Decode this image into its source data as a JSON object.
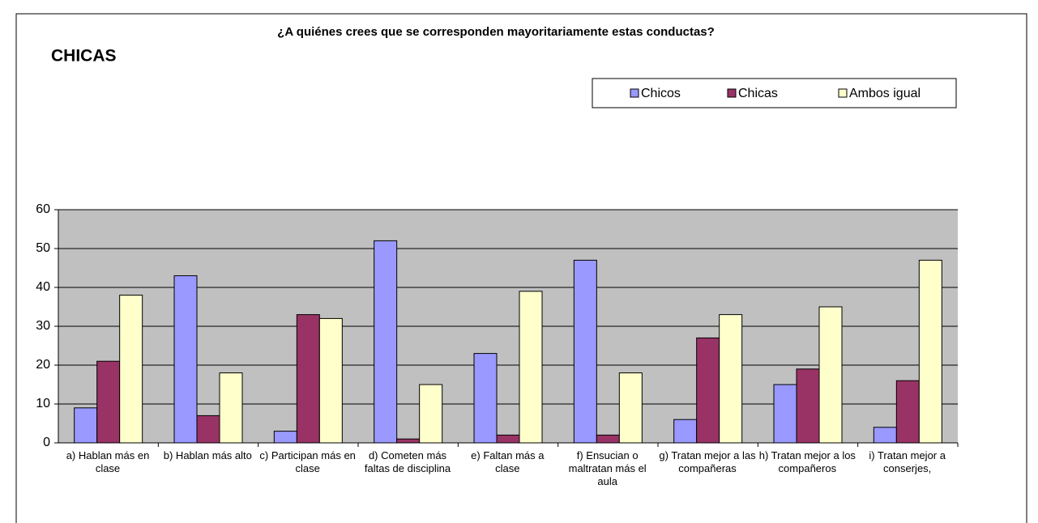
{
  "chart_data": {
    "type": "bar",
    "title": "¿A quiénes crees que se corresponden mayoritariamente estas conductas?",
    "subtitle": "CHICAS",
    "categories": [
      "a) Hablan más en clase",
      "b) Hablan más alto",
      "c) Participan más en clase",
      "d) Cometen más faltas de disciplina",
      "e) Faltan más a clase",
      "f) Ensucian o maltratan más el aula",
      "g) Tratan mejor a las compañeras",
      "h) Tratan mejor a los compañeros",
      "i) Tratan mejor a conserjes,"
    ],
    "series": [
      {
        "name": "Chicos",
        "color": "#9999ff",
        "values": [
          9,
          43,
          3,
          52,
          23,
          47,
          6,
          15,
          4
        ]
      },
      {
        "name": "Chicas",
        "color": "#993366",
        "values": [
          21,
          7,
          33,
          1,
          2,
          2,
          27,
          19,
          16
        ]
      },
      {
        "name": "Ambos igual",
        "color": "#ffffcc",
        "values": [
          38,
          18,
          32,
          15,
          39,
          18,
          33,
          35,
          47
        ]
      }
    ],
    "ylim": [
      0,
      60
    ],
    "yticks": [
      0,
      10,
      20,
      30,
      40,
      50,
      60
    ],
    "grid": true,
    "legend": "top-right"
  }
}
